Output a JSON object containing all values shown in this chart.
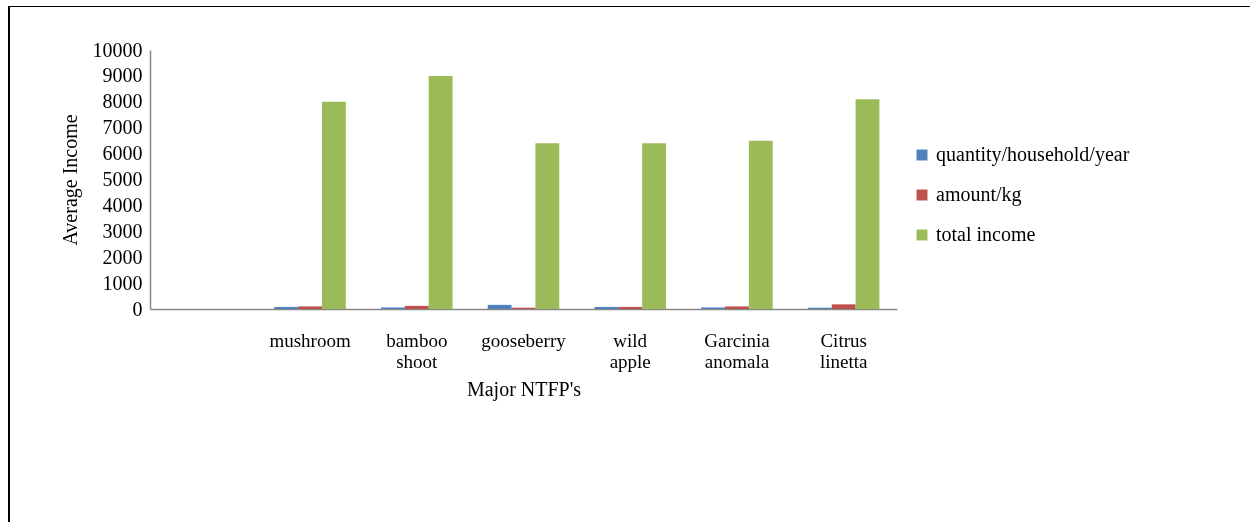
{
  "chart_data": {
    "type": "bar",
    "xlabel": "Major NTFP's",
    "ylabel": "Average Income",
    "categories": [
      null,
      "mushroom",
      "bamboo shoot",
      "gooseberry",
      "wild apple",
      "Garcinia anomala",
      "Citrus linetta"
    ],
    "series": [
      {
        "name": "quantity/household/year",
        "color": "#4f81bd",
        "values": [
          null,
          80,
          60,
          160,
          80,
          60,
          50
        ]
      },
      {
        "name": "amount/kg",
        "color": "#c0504d",
        "values": [
          null,
          100,
          120,
          50,
          80,
          100,
          180
        ]
      },
      {
        "name": "total income",
        "color": "#9bbb59",
        "values": [
          null,
          8000,
          9000,
          6400,
          6400,
          6500,
          8100
        ]
      }
    ],
    "ylim": [
      0,
      10000
    ],
    "yticks": [
      0,
      1000,
      2000,
      3000,
      4000,
      5000,
      6000,
      7000,
      8000,
      9000,
      10000
    ],
    "grid": false,
    "legend": "right"
  }
}
